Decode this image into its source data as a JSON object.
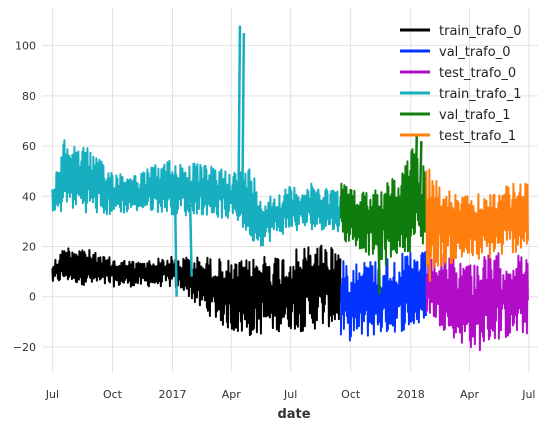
{
  "chart_data": {
    "type": "line",
    "xlabel": "date",
    "ylabel": "",
    "ylim": [
      -30,
      115
    ],
    "xlim": [
      "2016-06-15",
      "2018-07-15"
    ],
    "grid": true,
    "legend_position": "top-right",
    "x_ticks": [
      {
        "date": "2016-07-01",
        "label": "Jul"
      },
      {
        "date": "2016-10-01",
        "label": "Oct"
      },
      {
        "date": "2017-01-01",
        "label": "2017"
      },
      {
        "date": "2017-04-01",
        "label": "Apr"
      },
      {
        "date": "2017-07-01",
        "label": "Jul"
      },
      {
        "date": "2017-10-01",
        "label": "Oct"
      },
      {
        "date": "2018-01-01",
        "label": "2018"
      },
      {
        "date": "2018-04-01",
        "label": "Apr"
      },
      {
        "date": "2018-07-01",
        "label": "Jul"
      }
    ],
    "y_ticks": [
      -20,
      0,
      20,
      40,
      60,
      80,
      100
    ],
    "series": [
      {
        "name": "train_trafo_0",
        "color": "#000000",
        "x": [
          "2016-07-01",
          "2016-07-20",
          "2016-08-10",
          "2016-09-01",
          "2016-09-20",
          "2016-10-15",
          "2016-11-10",
          "2016-12-01",
          "2016-12-25",
          "2017-01-20",
          "2017-02-10",
          "2017-03-01",
          "2017-03-20",
          "2017-04-10",
          "2017-05-01",
          "2017-05-20",
          "2017-06-10",
          "2017-07-01",
          "2017-07-20",
          "2017-08-10",
          "2017-09-01",
          "2017-09-16"
        ],
        "low": [
          5,
          6,
          5,
          4,
          4,
          4,
          4,
          4,
          4,
          2,
          -5,
          -8,
          -12,
          -15,
          -16,
          -15,
          -14,
          -13,
          -14,
          -13,
          -12,
          -13
        ],
        "high": [
          14,
          20,
          21,
          18,
          16,
          15,
          14,
          15,
          16,
          16,
          16,
          16,
          15,
          14,
          15,
          18,
          17,
          18,
          20,
          22,
          22,
          20
        ]
      },
      {
        "name": "val_trafo_0",
        "color": "#0433ff",
        "x": [
          "2017-09-16",
          "2017-10-10",
          "2017-11-01",
          "2017-11-25",
          "2017-12-15",
          "2018-01-05",
          "2018-01-25"
        ],
        "low": [
          -17,
          -18,
          -16,
          -15,
          -14,
          -13,
          -12
        ],
        "high": [
          14,
          16,
          15,
          16,
          17,
          18,
          18
        ]
      },
      {
        "name": "test_trafo_0",
        "color": "#b10dc9",
        "x": [
          "2018-01-25",
          "2018-02-15",
          "2018-03-05",
          "2018-03-25",
          "2018-04-15",
          "2018-05-05",
          "2018-05-25",
          "2018-06-15",
          "2018-06-30"
        ],
        "low": [
          -6,
          -12,
          -16,
          -20,
          -22,
          -18,
          -17,
          -16,
          -15
        ],
        "high": [
          14,
          17,
          16,
          15,
          16,
          17,
          18,
          17,
          16
        ]
      },
      {
        "name": "train_trafo_1",
        "color": "#17aebf",
        "x": [
          "2016-07-01",
          "2016-07-20",
          "2016-08-10",
          "2016-09-01",
          "2016-09-20",
          "2016-10-15",
          "2016-11-10",
          "2016-12-01",
          "2016-12-25",
          "2017-01-20",
          "2017-02-10",
          "2017-03-01",
          "2017-03-20",
          "2017-04-10",
          "2017-05-01",
          "2017-05-20",
          "2017-06-10",
          "2017-07-01",
          "2017-07-20",
          "2017-08-10",
          "2017-09-01",
          "2017-09-16"
        ],
        "low": [
          30,
          35,
          34,
          33,
          32,
          33,
          34,
          34,
          33,
          32,
          33,
          32,
          31,
          30,
          22,
          20,
          24,
          26,
          26,
          27,
          26,
          26
        ],
        "high": [
          44,
          63,
          62,
          58,
          52,
          50,
          49,
          52,
          55,
          54,
          53,
          52,
          52,
          50,
          52,
          40,
          42,
          44,
          45,
          45,
          44,
          42
        ],
        "spikes": [
          {
            "x": "2017-01-05",
            "y": 0
          },
          {
            "x": "2017-01-28",
            "y": 8
          },
          {
            "x": "2017-04-12",
            "y": 108
          },
          {
            "x": "2017-04-18",
            "y": 105
          }
        ]
      },
      {
        "name": "val_trafo_1",
        "color": "#0e7d0e",
        "x": [
          "2017-09-16",
          "2017-10-10",
          "2017-11-01",
          "2017-11-25",
          "2017-12-15",
          "2018-01-05",
          "2018-01-25"
        ],
        "low": [
          22,
          20,
          16,
          12,
          18,
          18,
          20
        ],
        "high": [
          47,
          42,
          44,
          46,
          50,
          60,
          55
        ],
        "spikes": [
          {
            "x": "2017-11-12",
            "y": 1
          },
          {
            "x": "2018-01-08",
            "y": 65
          },
          {
            "x": "2018-01-15",
            "y": 62
          }
        ]
      },
      {
        "name": "test_trafo_1",
        "color": "#ff7f0e",
        "x": [
          "2018-01-25",
          "2018-02-15",
          "2018-03-05",
          "2018-03-25",
          "2018-04-15",
          "2018-05-05",
          "2018-05-25",
          "2018-06-15",
          "2018-06-30"
        ],
        "low": [
          10,
          12,
          13,
          14,
          14,
          15,
          16,
          18,
          18
        ],
        "high": [
          56,
          45,
          42,
          40,
          41,
          42,
          44,
          46,
          46
        ],
        "spikes": [
          {
            "x": "2018-01-28",
            "y": 6
          }
        ]
      }
    ]
  }
}
